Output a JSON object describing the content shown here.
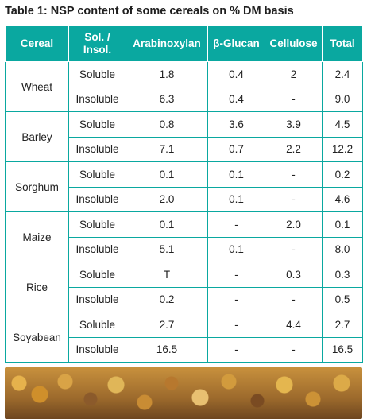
{
  "title": "Table 1: NSP content of some cereals on % DM basis",
  "headers": {
    "cereal": "Cereal",
    "sol_insol_line1": "Sol. /",
    "sol_insol_line2": "Insol.",
    "arabinoxylan": "Arabinoxylan",
    "beta_glucan": "β-Glucan",
    "cellulose": "Cellulose",
    "total": "Total"
  },
  "rows": [
    {
      "cereal": "Wheat",
      "soluble": {
        "type": "Soluble",
        "arabinoxylan": "1.8",
        "beta_glucan": "0.4",
        "cellulose": "2",
        "total": "2.4"
      },
      "insoluble": {
        "type": "Insoluble",
        "arabinoxylan": "6.3",
        "beta_glucan": "0.4",
        "cellulose": "-",
        "total": "9.0"
      }
    },
    {
      "cereal": "Barley",
      "soluble": {
        "type": "Soluble",
        "arabinoxylan": "0.8",
        "beta_glucan": "3.6",
        "cellulose": "3.9",
        "total": "4.5"
      },
      "insoluble": {
        "type": "Insoluble",
        "arabinoxylan": "7.1",
        "beta_glucan": "0.7",
        "cellulose": "2.2",
        "total": "12.2"
      }
    },
    {
      "cereal": "Sorghum",
      "soluble": {
        "type": "Soluble",
        "arabinoxylan": "0.1",
        "beta_glucan": "0.1",
        "cellulose": "-",
        "total": "0.2"
      },
      "insoluble": {
        "type": "Insoluble",
        "arabinoxylan": "2.0",
        "beta_glucan": "0.1",
        "cellulose": "-",
        "total": "4.6"
      }
    },
    {
      "cereal": "Maize",
      "soluble": {
        "type": "Soluble",
        "arabinoxylan": "0.1",
        "beta_glucan": "-",
        "cellulose": "2.0",
        "total": "0.1"
      },
      "insoluble": {
        "type": "Insoluble",
        "arabinoxylan": "5.1",
        "beta_glucan": "0.1",
        "cellulose": "-",
        "total": "8.0"
      }
    },
    {
      "cereal": "Rice",
      "soluble": {
        "type": "Soluble",
        "arabinoxylan": "T",
        "beta_glucan": "-",
        "cellulose": "0.3",
        "total": "0.3"
      },
      "insoluble": {
        "type": "Insoluble",
        "arabinoxylan": "0.2",
        "beta_glucan": "-",
        "cellulose": "-",
        "total": "0.5"
      }
    },
    {
      "cereal": "Soyabean",
      "soluble": {
        "type": "Soluble",
        "arabinoxylan": "2.7",
        "beta_glucan": "-",
        "cellulose": "4.4",
        "total": "2.7"
      },
      "insoluble": {
        "type": "Insoluble",
        "arabinoxylan": "16.5",
        "beta_glucan": "-",
        "cellulose": "-",
        "total": "16.5"
      }
    }
  ],
  "colors": {
    "header_bg": "#0aa8a0",
    "border": "#0aa8a0"
  }
}
